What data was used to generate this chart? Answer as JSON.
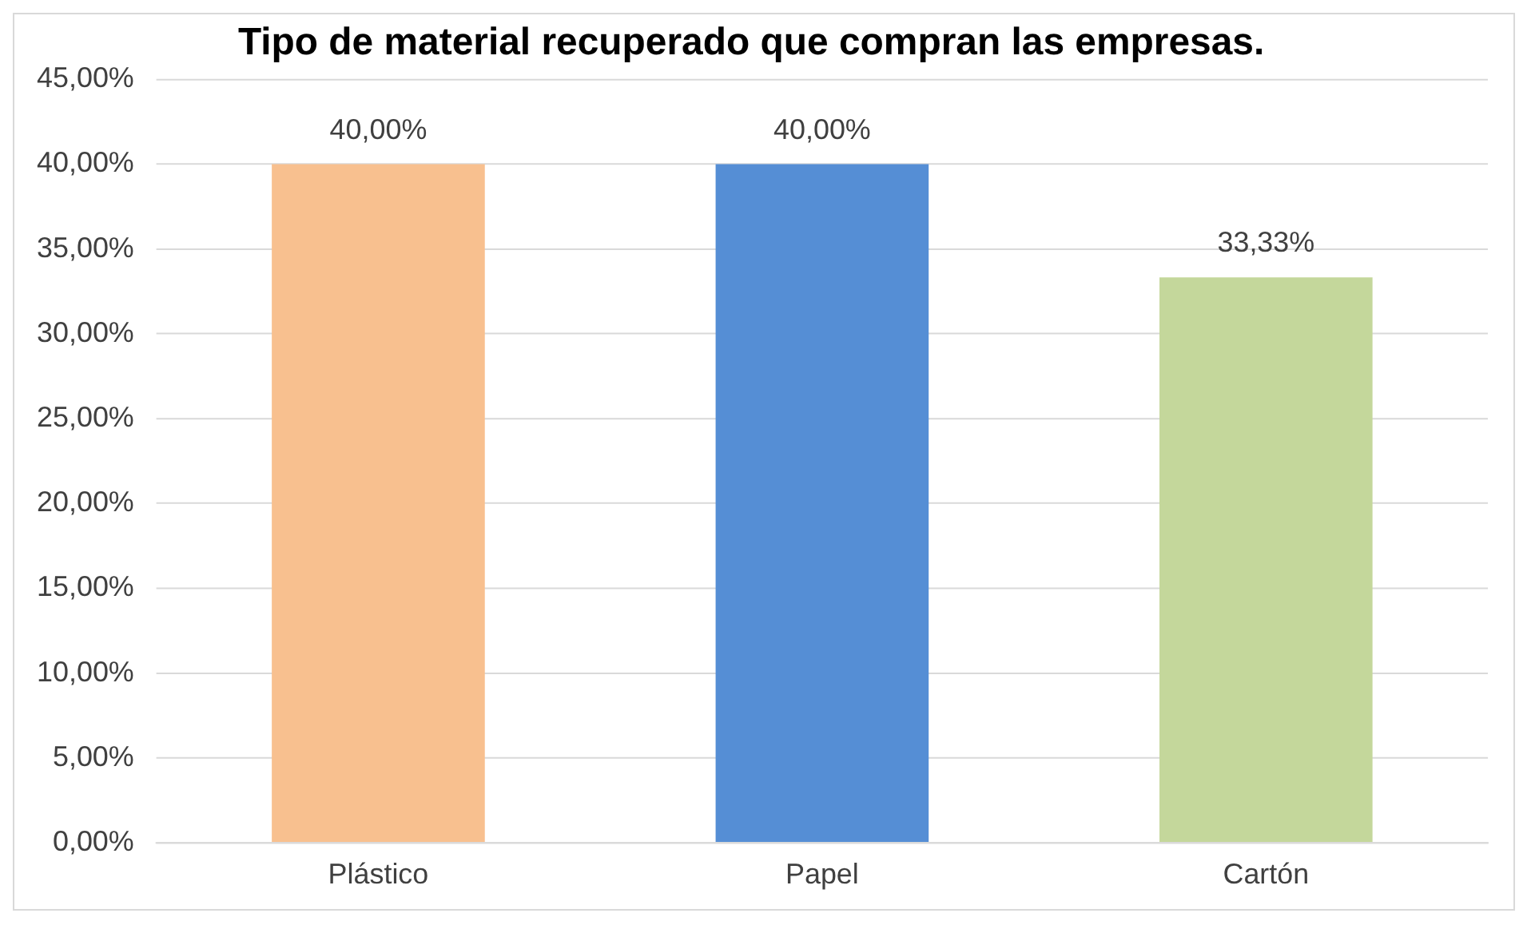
{
  "chart_data": {
    "type": "bar",
    "title": "Tipo de material recuperado que compran las empresas.",
    "categories": [
      "Plástico",
      "Papel",
      "Cartón"
    ],
    "values": [
      40,
      40,
      33.33
    ],
    "colors": [
      "#f8c08f",
      "#558ed5",
      "#c4d79b"
    ],
    "value_labels": [
      "40,00%",
      "40,00%",
      "33,33%"
    ],
    "ylim": [
      0,
      45
    ],
    "yticks": [
      {
        "value": 0,
        "label": "0,00%"
      },
      {
        "value": 5,
        "label": "5,00%"
      },
      {
        "value": 10,
        "label": "10,00%"
      },
      {
        "value": 15,
        "label": "15,00%"
      },
      {
        "value": 20,
        "label": "20,00%"
      },
      {
        "value": 25,
        "label": "25,00%"
      },
      {
        "value": 30,
        "label": "30,00%"
      },
      {
        "value": 35,
        "label": "35,00%"
      },
      {
        "value": 40,
        "label": "40,00%"
      },
      {
        "value": 45,
        "label": "45,00%"
      }
    ],
    "grid": "y",
    "legend": false
  }
}
